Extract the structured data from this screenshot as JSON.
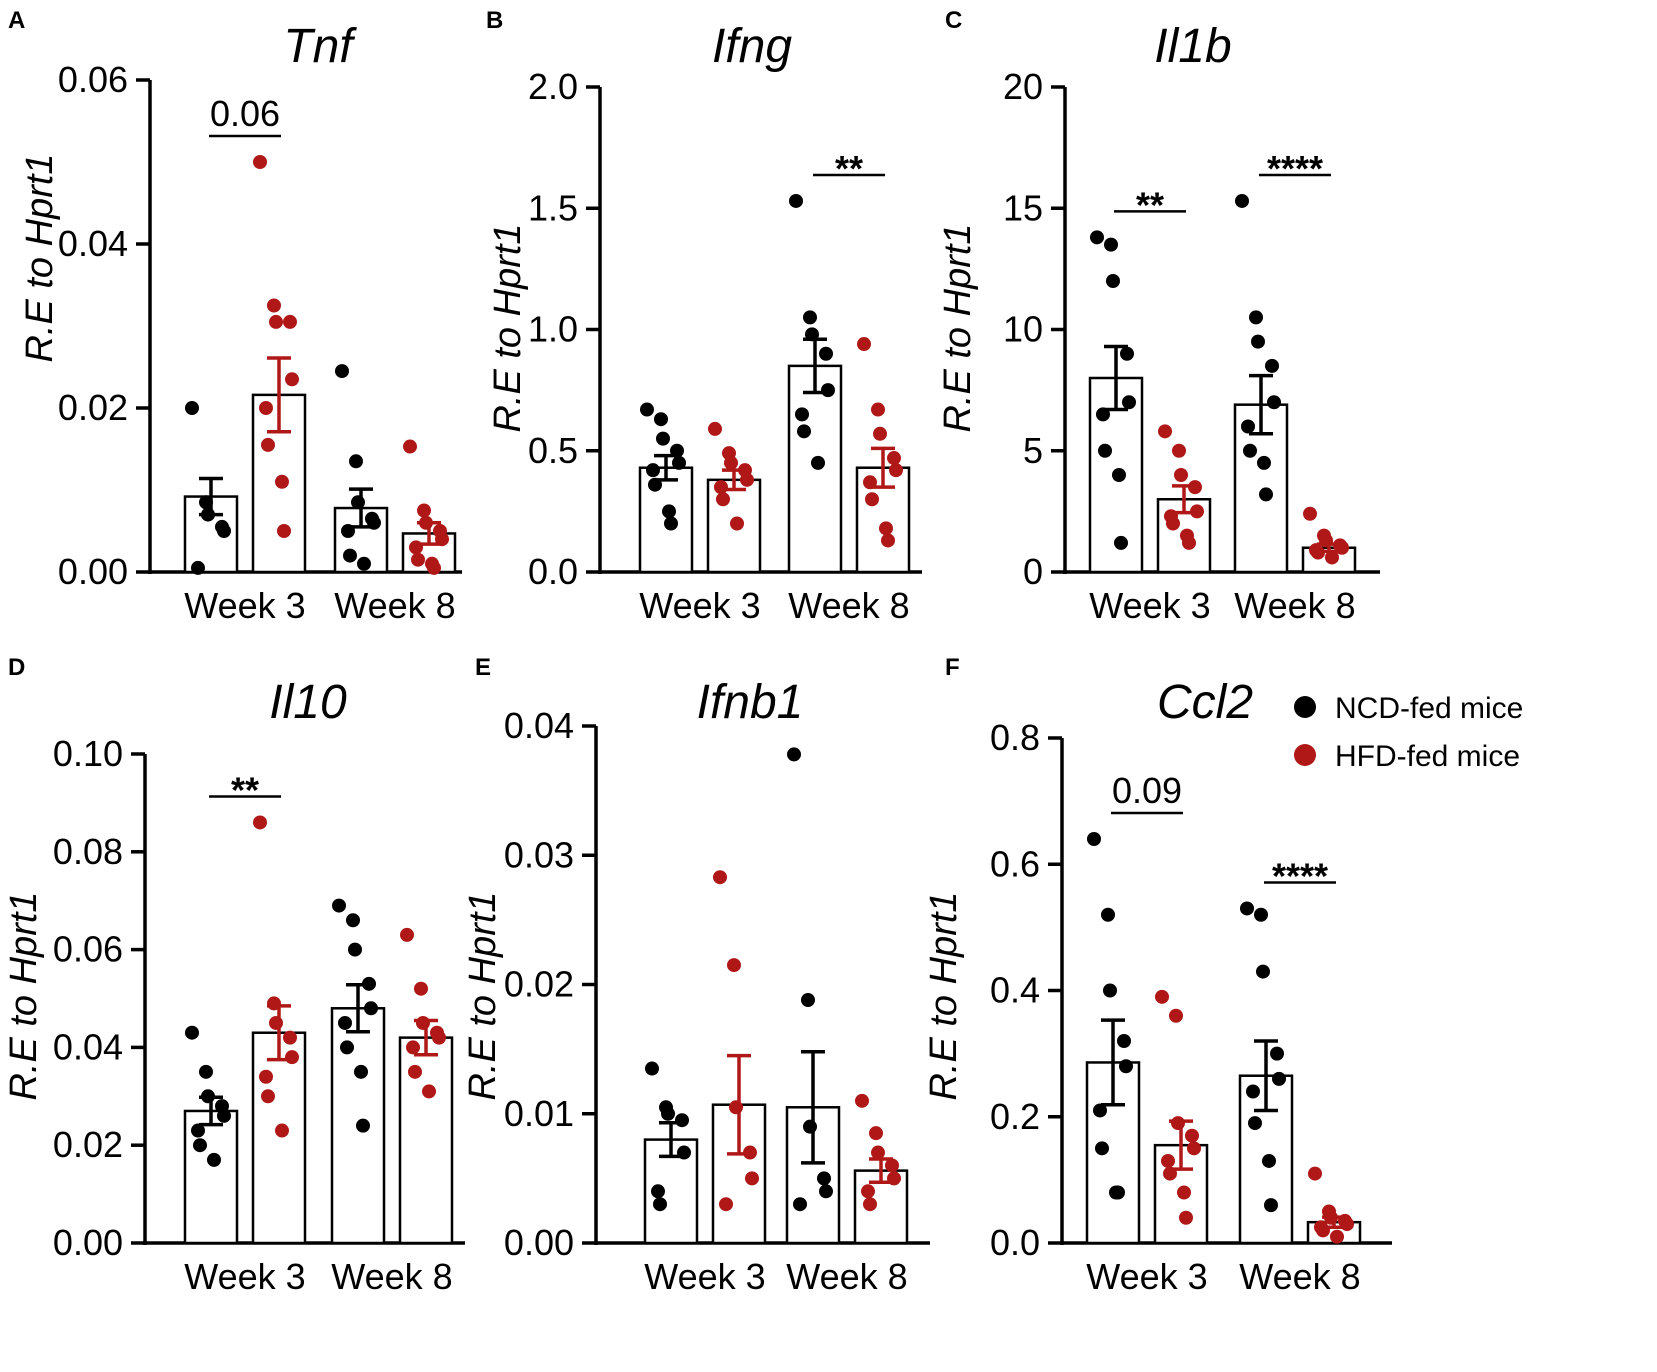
{
  "figure": {
    "legend": [
      {
        "label": "NCD-fed mice",
        "color": "#000000"
      },
      {
        "label": "HFD-fed mice",
        "color": "#b01818"
      }
    ]
  },
  "chart_data": [
    {
      "panel": "A",
      "type": "bar",
      "title": "Tnf",
      "ylabel": "R.E to Hprt1",
      "xlabel": "",
      "ylim": [
        0,
        0.06
      ],
      "yticks": [
        {
          "v": 0,
          "label": "0.00"
        },
        {
          "v": 0.02,
          "label": "0.02"
        },
        {
          "v": 0.04,
          "label": "0.04"
        },
        {
          "v": 0.06,
          "label": "0.06"
        }
      ],
      "categories": [
        "Week 3",
        "Week 8"
      ],
      "series": [
        {
          "name": "NCD-fed mice",
          "color": "#000000",
          "values": [
            0.0092,
            0.0078
          ],
          "sem": [
            0.0022,
            0.0023
          ],
          "points": [
            [
              0.02,
              0.0085,
              0.007,
              0.0055,
              0.005,
              0.0005
            ],
            [
              0.0245,
              0.0135,
              0.0085,
              0.0065,
              0.006,
              0.005,
              0.002,
              0.001
            ]
          ]
        },
        {
          "name": "HFD-fed mice",
          "color": "#b01818",
          "values": [
            0.0216,
            0.0047
          ],
          "sem": [
            0.0045,
            0.0013
          ],
          "points": [
            [
              0.05,
              0.0325,
              0.0305,
              0.0305,
              0.0235,
              0.02,
              0.0155,
              0.011,
              0.005
            ],
            [
              0.0153,
              0.0075,
              0.006,
              0.005,
              0.004,
              0.003,
              0.0015,
              0.001,
              0.0005
            ]
          ]
        }
      ],
      "annotations": [
        {
          "category": 0,
          "text": "0.06"
        }
      ]
    },
    {
      "panel": "B",
      "type": "bar",
      "title": "Ifng",
      "ylabel": "R.E to Hprt1",
      "xlabel": "",
      "ylim": [
        0,
        2.0
      ],
      "yticks": [
        {
          "v": 0,
          "label": "0.0"
        },
        {
          "v": 0.5,
          "label": "0.5"
        },
        {
          "v": 1.0,
          "label": "1.0"
        },
        {
          "v": 1.5,
          "label": "1.5"
        },
        {
          "v": 2.0,
          "label": "2.0"
        }
      ],
      "categories": [
        "Week 3",
        "Week 8"
      ],
      "series": [
        {
          "name": "NCD-fed mice",
          "color": "#000000",
          "values": [
            0.43,
            0.85
          ],
          "sem": [
            0.05,
            0.11
          ],
          "points": [
            [
              0.67,
              0.63,
              0.55,
              0.5,
              0.45,
              0.42,
              0.36,
              0.25,
              0.2
            ],
            [
              1.53,
              1.05,
              0.98,
              0.9,
              0.75,
              0.65,
              0.58,
              0.45
            ]
          ]
        },
        {
          "name": "HFD-fed mice",
          "color": "#b01818",
          "values": [
            0.38,
            0.43
          ],
          "sem": [
            0.04,
            0.08
          ],
          "points": [
            [
              0.59,
              0.49,
              0.45,
              0.42,
              0.38,
              0.35,
              0.3,
              0.2
            ],
            [
              0.94,
              0.67,
              0.57,
              0.47,
              0.42,
              0.37,
              0.3,
              0.18,
              0.13
            ]
          ]
        }
      ],
      "annotations": [
        {
          "category": 1,
          "text": "**"
        }
      ]
    },
    {
      "panel": "C",
      "type": "bar",
      "title": "Il1b",
      "ylabel": "R.E to Hprt1",
      "xlabel": "",
      "ylim": [
        0,
        20
      ],
      "yticks": [
        {
          "v": 0,
          "label": "0"
        },
        {
          "v": 5,
          "label": "5"
        },
        {
          "v": 10,
          "label": "10"
        },
        {
          "v": 15,
          "label": "15"
        },
        {
          "v": 20,
          "label": "20"
        }
      ],
      "categories": [
        "Week 3",
        "Week 8"
      ],
      "series": [
        {
          "name": "NCD-fed mice",
          "color": "#000000",
          "values": [
            8.0,
            6.9
          ],
          "sem": [
            1.3,
            1.2
          ],
          "points": [
            [
              13.8,
              13.5,
              12.0,
              9.0,
              7.0,
              6.5,
              5.0,
              4.0,
              1.2
            ],
            [
              15.3,
              10.5,
              9.5,
              8.5,
              7.0,
              6.0,
              5.0,
              4.5,
              3.2
            ]
          ]
        },
        {
          "name": "HFD-fed mice",
          "color": "#b01818",
          "values": [
            3.0,
            1.0
          ],
          "sem": [
            0.55,
            0.15
          ],
          "points": [
            [
              5.8,
              5.0,
              4.0,
              3.5,
              2.5,
              2.3,
              2.0,
              1.5,
              1.2
            ],
            [
              2.4,
              1.5,
              1.3,
              1.1,
              1.0,
              0.9,
              0.8,
              0.6
            ]
          ]
        }
      ],
      "annotations": [
        {
          "category": 0,
          "text": "**"
        },
        {
          "category": 1,
          "text": "****"
        }
      ]
    },
    {
      "panel": "D",
      "type": "bar",
      "title": "Il10",
      "ylabel": "R.E to Hprt1",
      "xlabel": "",
      "ylim": [
        0,
        0.1
      ],
      "yticks": [
        {
          "v": 0,
          "label": "0.00"
        },
        {
          "v": 0.02,
          "label": "0.02"
        },
        {
          "v": 0.04,
          "label": "0.04"
        },
        {
          "v": 0.06,
          "label": "0.06"
        },
        {
          "v": 0.08,
          "label": "0.08"
        },
        {
          "v": 0.1,
          "label": "0.10"
        }
      ],
      "categories": [
        "Week 3",
        "Week 8"
      ],
      "series": [
        {
          "name": "NCD-fed mice",
          "color": "#000000",
          "values": [
            0.027,
            0.048
          ],
          "sem": [
            0.0028,
            0.0048
          ],
          "points": [
            [
              0.043,
              0.035,
              0.03,
              0.028,
              0.026,
              0.023,
              0.02,
              0.017
            ],
            [
              0.069,
              0.066,
              0.06,
              0.053,
              0.048,
              0.045,
              0.04,
              0.035,
              0.024
            ]
          ]
        },
        {
          "name": "HFD-fed mice",
          "color": "#b01818",
          "values": [
            0.043,
            0.042
          ],
          "sem": [
            0.0055,
            0.0035
          ],
          "points": [
            [
              0.086,
              0.049,
              0.045,
              0.042,
              0.038,
              0.034,
              0.03,
              0.023
            ],
            [
              0.063,
              0.052,
              0.045,
              0.043,
              0.042,
              0.04,
              0.035,
              0.031
            ]
          ]
        }
      ],
      "annotations": [
        {
          "category": 0,
          "text": "**"
        }
      ]
    },
    {
      "panel": "E",
      "type": "bar",
      "title": "Ifnb1",
      "ylabel": "R.E to Hprt1",
      "xlabel": "",
      "ylim": [
        0,
        0.04
      ],
      "yticks": [
        {
          "v": 0,
          "label": "0.00"
        },
        {
          "v": 0.01,
          "label": "0.01"
        },
        {
          "v": 0.02,
          "label": "0.02"
        },
        {
          "v": 0.03,
          "label": "0.03"
        },
        {
          "v": 0.04,
          "label": "0.04"
        }
      ],
      "categories": [
        "Week 3",
        "Week 8"
      ],
      "series": [
        {
          "name": "NCD-fed mice",
          "color": "#000000",
          "values": [
            0.008,
            0.0105
          ],
          "sem": [
            0.0013,
            0.0043
          ],
          "points": [
            [
              0.0135,
              0.0105,
              0.01,
              0.0095,
              0.007,
              0.004,
              0.003
            ],
            [
              0.0378,
              0.0188,
              0.009,
              0.005,
              0.004,
              0.003
            ]
          ]
        },
        {
          "name": "HFD-fed mice",
          "color": "#b01818",
          "values": [
            0.0107,
            0.0056
          ],
          "sem": [
            0.0038,
            0.0009
          ],
          "points": [
            [
              0.0283,
              0.0215,
              0.0105,
              0.007,
              0.005,
              0.003
            ],
            [
              0.011,
              0.0085,
              0.007,
              0.006,
              0.005,
              0.004,
              0.003
            ]
          ]
        }
      ],
      "annotations": []
    },
    {
      "panel": "F",
      "type": "bar",
      "title": "Ccl2",
      "ylabel": "R.E to Hprt1",
      "xlabel": "",
      "ylim": [
        0,
        0.8
      ],
      "yticks": [
        {
          "v": 0,
          "label": "0.0"
        },
        {
          "v": 0.2,
          "label": "0.2"
        },
        {
          "v": 0.4,
          "label": "0.4"
        },
        {
          "v": 0.6,
          "label": "0.6"
        },
        {
          "v": 0.8,
          "label": "0.8"
        }
      ],
      "categories": [
        "Week 3",
        "Week 8"
      ],
      "series": [
        {
          "name": "NCD-fed mice",
          "color": "#000000",
          "values": [
            0.286,
            0.265
          ],
          "sem": [
            0.067,
            0.055
          ],
          "points": [
            [
              0.64,
              0.52,
              0.4,
              0.32,
              0.28,
              0.21,
              0.15,
              0.08,
              0.08
            ],
            [
              0.53,
              0.52,
              0.43,
              0.3,
              0.26,
              0.24,
              0.19,
              0.13,
              0.06
            ]
          ]
        },
        {
          "name": "HFD-fed mice",
          "color": "#b01818",
          "values": [
            0.155,
            0.033
          ],
          "sem": [
            0.038,
            0.008
          ],
          "points": [
            [
              0.39,
              0.36,
              0.19,
              0.17,
              0.15,
              0.13,
              0.11,
              0.08,
              0.04
            ],
            [
              0.11,
              0.05,
              0.04,
              0.035,
              0.03,
              0.025,
              0.02,
              0.01
            ]
          ]
        }
      ],
      "annotations": [
        {
          "category": 0,
          "text": "0.09"
        },
        {
          "category": 1,
          "text": "****"
        }
      ]
    }
  ]
}
